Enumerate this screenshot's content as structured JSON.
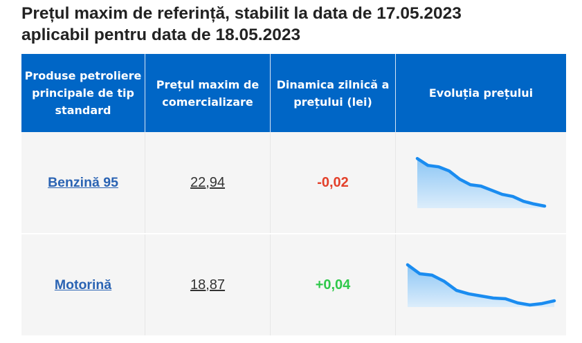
{
  "title_line1": "Prețul maxim de referință, stabilit la data de 17.05.2023",
  "title_line2": "aplicabil pentru data de 18.05.2023",
  "headers": [
    "Produse petroliere principale de tip standard",
    "Prețul maxim de comercializare",
    "Dinamica zilnică a prețului (lei)",
    "Evoluția prețului"
  ],
  "rows": [
    {
      "product": "Benzină 95",
      "price": "22,94",
      "change": "-0,02",
      "change_color": "#e3402a",
      "trend": [
        72,
        62,
        60,
        54,
        42,
        34,
        32,
        26,
        20,
        17,
        10,
        6,
        3
      ]
    },
    {
      "product": "Motorină",
      "price": "18,87",
      "change": "+0,04",
      "change_color": "#2ec84a",
      "trend": [
        61,
        48,
        46,
        37,
        24,
        19,
        16,
        13,
        12,
        6,
        3,
        5,
        9
      ]
    }
  ],
  "colors": {
    "header": "#0066c6",
    "line": "#1a8cf0"
  }
}
